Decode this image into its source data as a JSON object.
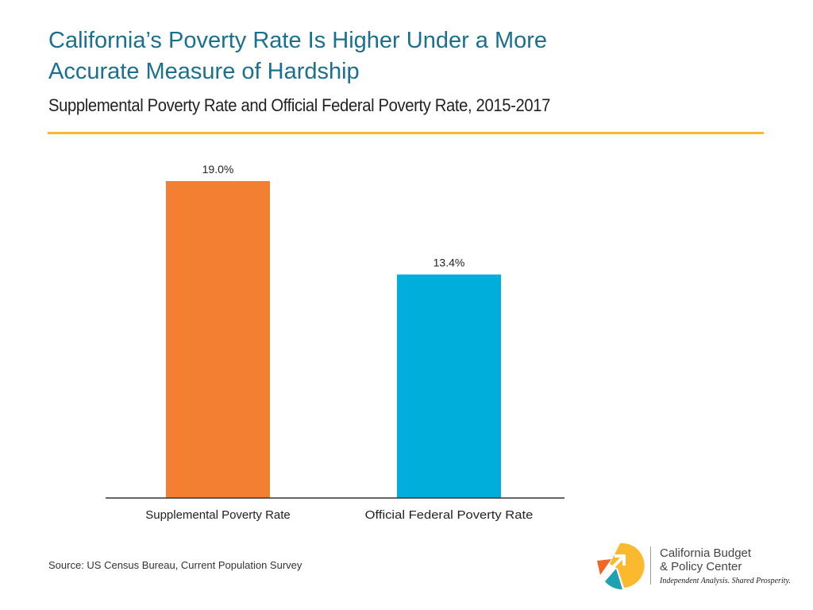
{
  "chart_data": {
    "type": "bar",
    "title": "California’s Poverty Rate Is Higher Under a More Accurate Measure of Hardship",
    "subtitle": "Supplemental Poverty Rate and Official Federal Poverty Rate, 2015-2017",
    "categories": [
      "Supplemental Poverty Rate",
      "Official Federal Poverty Rate"
    ],
    "values": [
      19.0,
      13.4
    ],
    "data_labels": [
      "19.0%",
      "13.4%"
    ],
    "bar_colors": [
      "#f37f32",
      "#00aedb"
    ],
    "ylim": [
      0,
      19
    ],
    "grid": false,
    "xlabel": "",
    "ylabel": ""
  },
  "source": "Source: US Census Bureau, Current Population Survey",
  "accent_color": "#fbb930",
  "logo": {
    "name": "California Budget & Policy Center logo",
    "line1": "California Budget",
    "line2": "& Policy Center",
    "tagline": "Independent Analysis. Shared Prosperity."
  }
}
